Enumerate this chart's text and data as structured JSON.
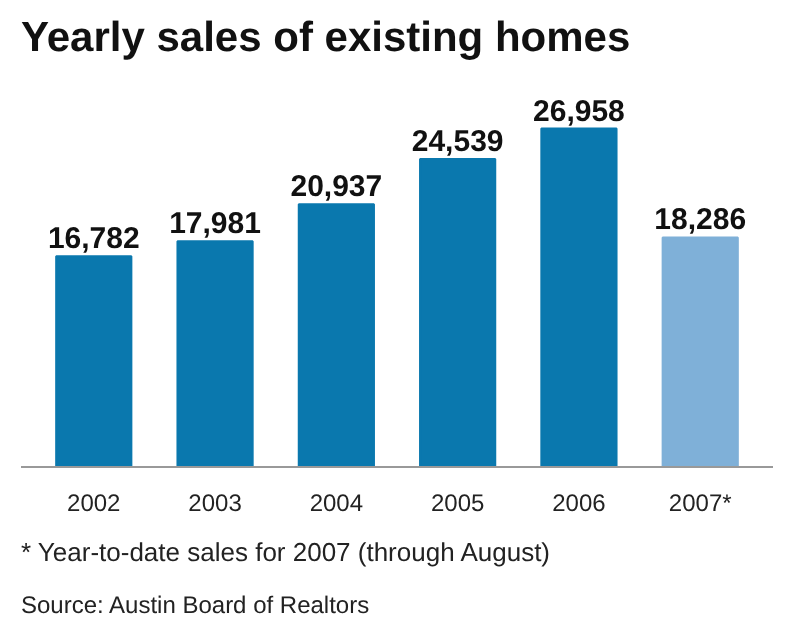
{
  "chart_data": {
    "type": "bar",
    "title": "Yearly sales of existing homes",
    "categories": [
      "2002",
      "2003",
      "2004",
      "2005",
      "2006",
      "2007*"
    ],
    "values": [
      16782,
      17981,
      20937,
      24539,
      26958,
      18286
    ],
    "colors": [
      "#0a78ae",
      "#0a78ae",
      "#0a78ae",
      "#0a78ae",
      "#0a78ae",
      "#7fb0d8"
    ],
    "data_labels": true,
    "value_labels": [
      "16,782",
      "17,981",
      "20,937",
      "24,539",
      "26,958",
      "18,286"
    ],
    "annotations": [
      "* Year-to-date sales for 2007 (through August)",
      "Source: Austin Board of Realtors"
    ]
  }
}
